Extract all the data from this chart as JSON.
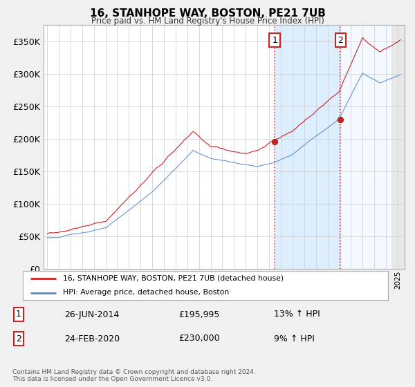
{
  "title": "16, STANHOPE WAY, BOSTON, PE21 7UB",
  "subtitle": "Price paid vs. HM Land Registry's House Price Index (HPI)",
  "ylim": [
    0,
    370000
  ],
  "xlim_start": 1994.7,
  "xlim_end": 2025.3,
  "purchase1": {
    "date_num": 2014.48,
    "price": 195995,
    "label": "1",
    "date_str": "26-JUN-2014",
    "pct": "13%"
  },
  "purchase2": {
    "date_num": 2020.12,
    "price": 230000,
    "label": "2",
    "date_str": "24-FEB-2020",
    "pct": "9%"
  },
  "legend_line1": "16, STANHOPE WAY, BOSTON, PE21 7UB (detached house)",
  "legend_line2": "HPI: Average price, detached house, Boston",
  "footer1": "Contains HM Land Registry data © Crown copyright and database right 2024.",
  "footer2": "This data is licensed under the Open Government Licence v3.0.",
  "hpi_color": "#5588cc",
  "price_color": "#cc2222",
  "marker_color_box": "#cc2222",
  "vline_color": "#ee4444",
  "shade_color": "#ddeeff",
  "hatch_color": "#cccccc",
  "background_color": "#f0f0f0",
  "plot_bg_color": "#ffffff",
  "hatch_start": 2024.5
}
